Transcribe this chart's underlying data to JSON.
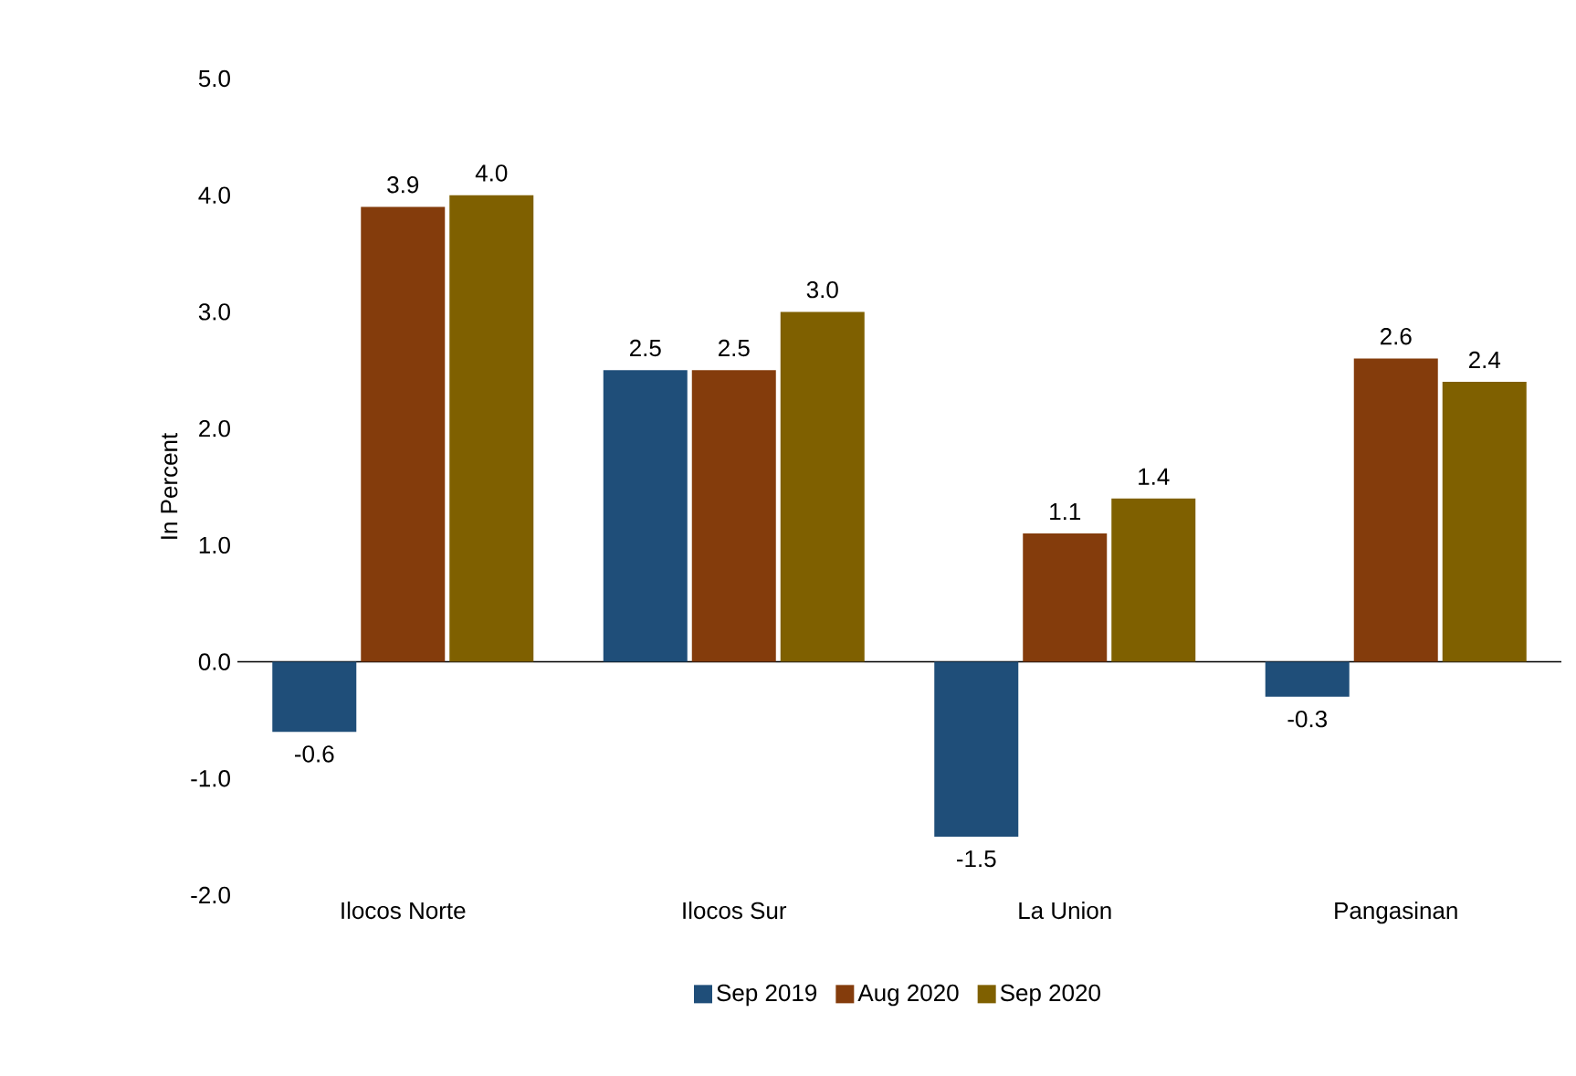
{
  "chart_data": {
    "type": "bar",
    "ylabel": "In Percent",
    "categories": [
      "Ilocos Norte",
      "Ilocos Sur",
      "La Union",
      "Pangasinan"
    ],
    "series": [
      {
        "name": "Sep 2019",
        "color": "#1f4e79",
        "values": [
          -0.6,
          2.5,
          -1.5,
          -0.3
        ],
        "value_labels": [
          "-0.6",
          "2.5",
          "-1.5",
          "-0.3"
        ]
      },
      {
        "name": "Aug 2020",
        "color": "#843c0c",
        "values": [
          3.9,
          2.5,
          1.1,
          2.6
        ],
        "value_labels": [
          "3.9",
          "2.5",
          "1.1",
          "2.6"
        ]
      },
      {
        "name": "Sep 2020",
        "color": "#7f6000",
        "values": [
          4.0,
          3.0,
          1.4,
          2.4
        ],
        "value_labels": [
          "4.0",
          "3.0",
          "1.4",
          "2.4"
        ]
      }
    ],
    "ylim": [
      -2,
      5
    ],
    "yticks": [
      {
        "value": -2,
        "label": "-2.0"
      },
      {
        "value": -1,
        "label": "-1.0"
      },
      {
        "value": 0,
        "label": "0.0"
      },
      {
        "value": 1,
        "label": "1.0"
      },
      {
        "value": 2,
        "label": "2.0"
      },
      {
        "value": 3,
        "label": "3.0"
      },
      {
        "value": 4,
        "label": "4.0"
      },
      {
        "value": 5,
        "label": "5.0"
      }
    ],
    "legend": "bottom"
  }
}
